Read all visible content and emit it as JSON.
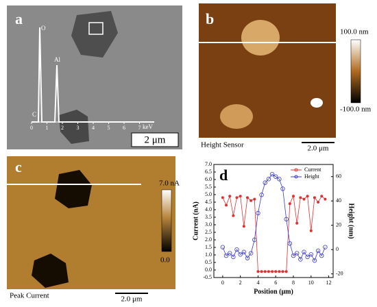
{
  "panels": {
    "a": {
      "label": "a",
      "eds_peaks": [
        "O",
        "Al",
        "C"
      ],
      "eds_ticks": [
        "0",
        "1",
        "2",
        "3",
        "4",
        "5",
        "6",
        "7"
      ],
      "eds_unit": "keV",
      "scale_bar": "2 μm"
    },
    "b": {
      "label": "b",
      "colorbar_max": "100.0 nm",
      "colorbar_min": "-100.0 nm",
      "caption": "Height Sensor",
      "scale_bar": "2.0 μm"
    },
    "c": {
      "label": "c",
      "colorbar_max": "7.0 nA",
      "colorbar_min": "0.0",
      "caption": "Peak Current",
      "scale_bar": "2.0 μm"
    }
  },
  "chart_data": {
    "type": "line",
    "label": "d",
    "x": [
      0,
      0.4,
      0.8,
      1.2,
      1.6,
      2.0,
      2.4,
      2.8,
      3.2,
      3.6,
      4.0,
      4.4,
      4.8,
      5.2,
      5.6,
      6.0,
      6.4,
      6.8,
      7.2,
      7.6,
      8.0,
      8.4,
      8.8,
      9.2,
      9.6,
      10.0,
      10.4,
      10.8,
      11.2,
      11.6
    ],
    "series": [
      {
        "name": "Current",
        "color": "#e03030",
        "values": [
          4.8,
          4.3,
          4.9,
          3.6,
          4.8,
          4.9,
          2.9,
          4.8,
          4.6,
          4.7,
          -0.1,
          -0.1,
          -0.1,
          -0.1,
          -0.1,
          -0.1,
          -0.1,
          -0.1,
          -0.1,
          4.4,
          4.9,
          3.1,
          4.8,
          4.7,
          4.9,
          2.6,
          4.8,
          4.5,
          4.9,
          4.7
        ]
      },
      {
        "name": "Height",
        "color": "#3a3ad0",
        "axis": "y2",
        "values": [
          2,
          -5,
          -3,
          -6,
          0,
          -4,
          -2,
          -7,
          -3,
          8,
          30,
          45,
          55,
          58,
          62,
          60,
          58,
          50,
          25,
          5,
          -5,
          -3,
          -8,
          -2,
          -6,
          -4,
          -9,
          -1,
          -5,
          2
        ]
      }
    ],
    "xlabel": "Position (μm)",
    "ylabel": "Current (nA)",
    "y2label": "Height (nm)",
    "xlim": [
      -1,
      12.5
    ],
    "xticks": [
      0,
      2,
      4,
      6,
      8,
      10,
      12
    ],
    "ylim": [
      -0.5,
      7.0
    ],
    "yticks": [
      -0.5,
      {
        "value": 0,
        "label": "0.0"
      },
      0.5,
      {
        "value": 1,
        "label": "1.0"
      },
      1.5,
      {
        "value": 2,
        "label": "2.0"
      },
      2.5,
      {
        "value": 3,
        "label": "3.0"
      },
      3.5,
      {
        "value": 4,
        "label": "4.0"
      },
      4.5,
      {
        "value": 5,
        "label": "5.0"
      },
      5.5,
      {
        "value": 6,
        "label": "6.0"
      },
      6.5,
      {
        "value": 7,
        "label": "7.0"
      }
    ],
    "y2lim": [
      -23,
      70
    ],
    "y2ticks": [
      -20,
      0,
      20,
      40,
      60
    ],
    "legend": "upper right"
  }
}
